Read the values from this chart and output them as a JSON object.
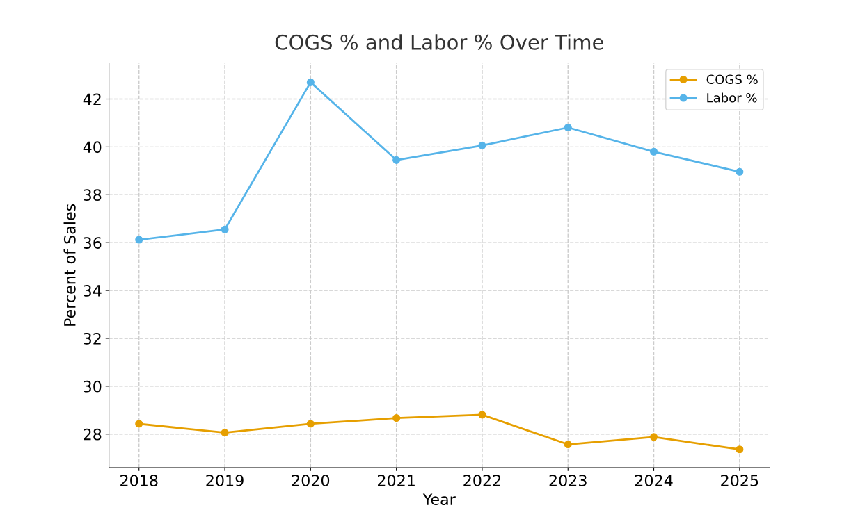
{
  "chart_data": {
    "type": "line",
    "title": "COGS % and Labor % Over Time",
    "xlabel": "Year",
    "ylabel": "Percent of Sales",
    "x": [
      2018,
      2019,
      2020,
      2021,
      2022,
      2023,
      2024,
      2025
    ],
    "series": [
      {
        "name": "COGS %",
        "color": "#e69f00",
        "values": [
          28.43,
          28.06,
          28.43,
          28.67,
          28.81,
          27.57,
          27.88,
          27.36
        ]
      },
      {
        "name": "Labor %",
        "color": "#56b4e9",
        "values": [
          36.12,
          36.55,
          42.7,
          39.45,
          40.06,
          40.81,
          39.8,
          38.96
        ]
      }
    ],
    "xlim": [
      2017.65,
      2025.35
    ],
    "xticks": [
      2018,
      2019,
      2020,
      2021,
      2022,
      2023,
      2024,
      2025
    ],
    "ylim": [
      26.6,
      43.5
    ],
    "yticks": [
      28,
      30,
      32,
      34,
      36,
      38,
      40,
      42
    ],
    "grid": true,
    "legend": "top right",
    "marker": "circle",
    "line_style": "solid"
  }
}
